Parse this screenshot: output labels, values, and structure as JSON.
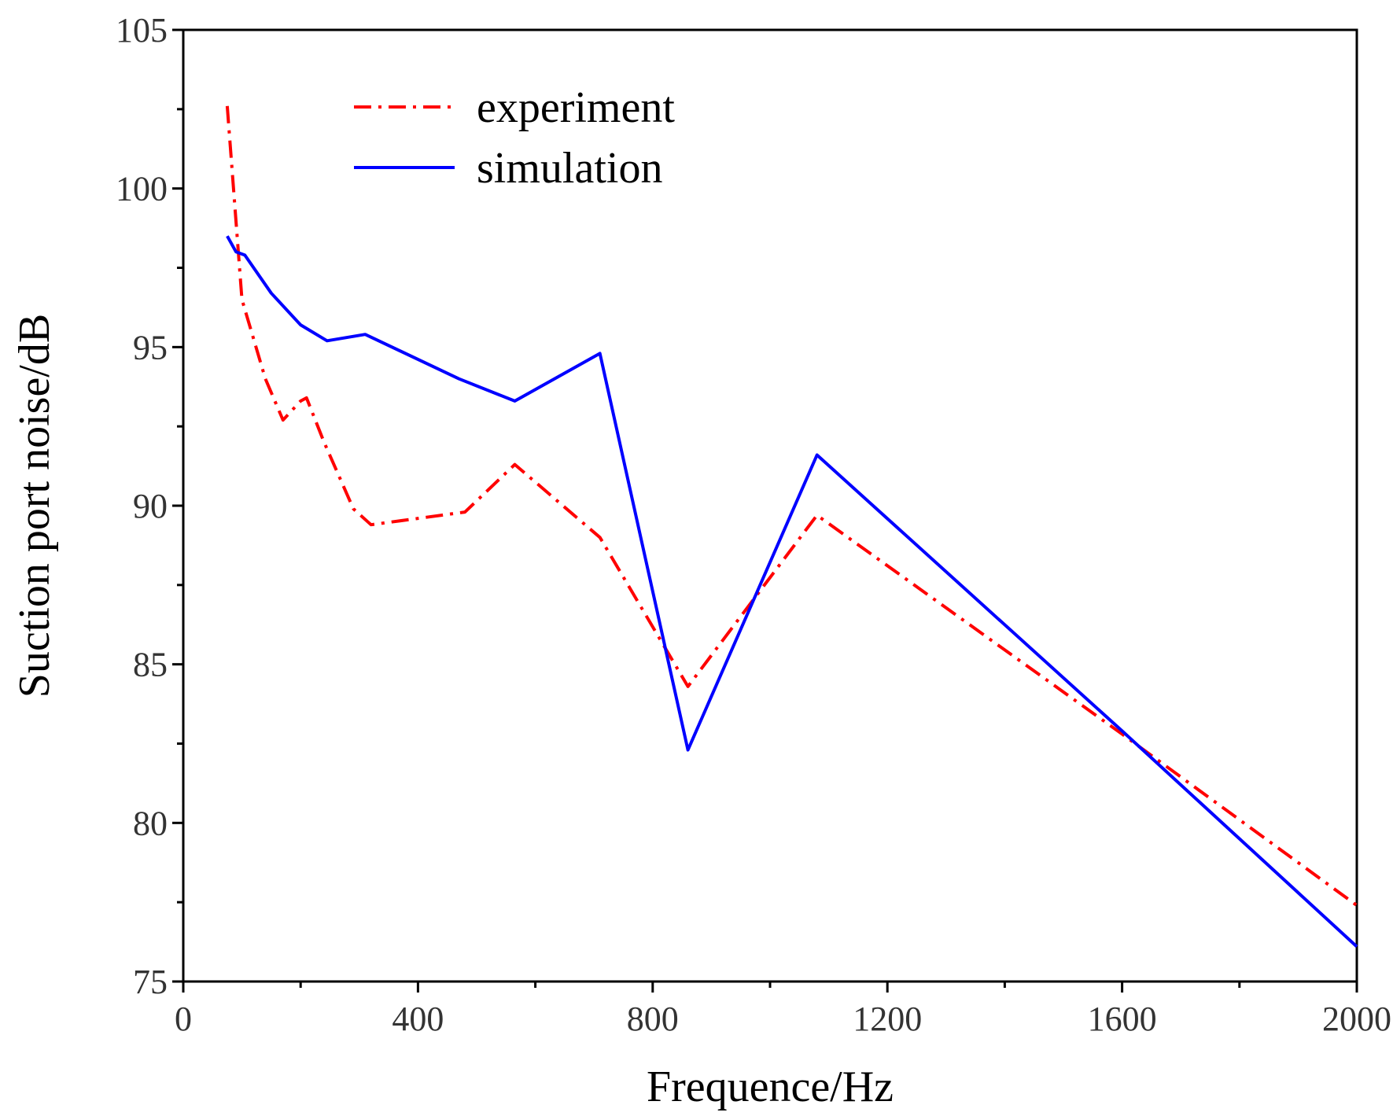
{
  "chart_data": {
    "type": "line",
    "title": "",
    "xlabel": "Frequence/Hz",
    "ylabel": "Suction port noise/dB",
    "xlim": [
      0,
      2000
    ],
    "ylim": [
      75,
      105
    ],
    "x_ticks": [
      0,
      400,
      800,
      1200,
      1600,
      2000
    ],
    "x_minor_ticks": [
      200,
      600,
      1000,
      1400,
      1800
    ],
    "y_ticks": [
      75,
      80,
      85,
      90,
      95,
      100,
      105
    ],
    "grid": false,
    "legend_position": "top-left",
    "series": [
      {
        "name": "experiment",
        "color": "#ff0000",
        "dash": "dash-dot",
        "points": [
          [
            75,
            102.6
          ],
          [
            100,
            96.5
          ],
          [
            140,
            94.0
          ],
          [
            170,
            92.7
          ],
          [
            200,
            93.3
          ],
          [
            210,
            93.4
          ],
          [
            240,
            92.0
          ],
          [
            290,
            89.9
          ],
          [
            320,
            89.4
          ],
          [
            480,
            89.8
          ],
          [
            565,
            91.3
          ],
          [
            710,
            89.0
          ],
          [
            860,
            84.3
          ],
          [
            1080,
            89.7
          ],
          [
            1600,
            82.8
          ],
          [
            2000,
            77.4
          ]
        ]
      },
      {
        "name": "simulation",
        "color": "#0000ff",
        "dash": "solid",
        "points": [
          [
            75,
            98.5
          ],
          [
            90,
            98.0
          ],
          [
            105,
            97.9
          ],
          [
            150,
            96.7
          ],
          [
            200,
            95.7
          ],
          [
            245,
            95.2
          ],
          [
            310,
            95.4
          ],
          [
            470,
            94.0
          ],
          [
            565,
            93.3
          ],
          [
            710,
            94.8
          ],
          [
            860,
            82.3
          ],
          [
            1080,
            91.6
          ],
          [
            1600,
            82.9
          ],
          [
            2000,
            76.1
          ]
        ]
      }
    ]
  }
}
